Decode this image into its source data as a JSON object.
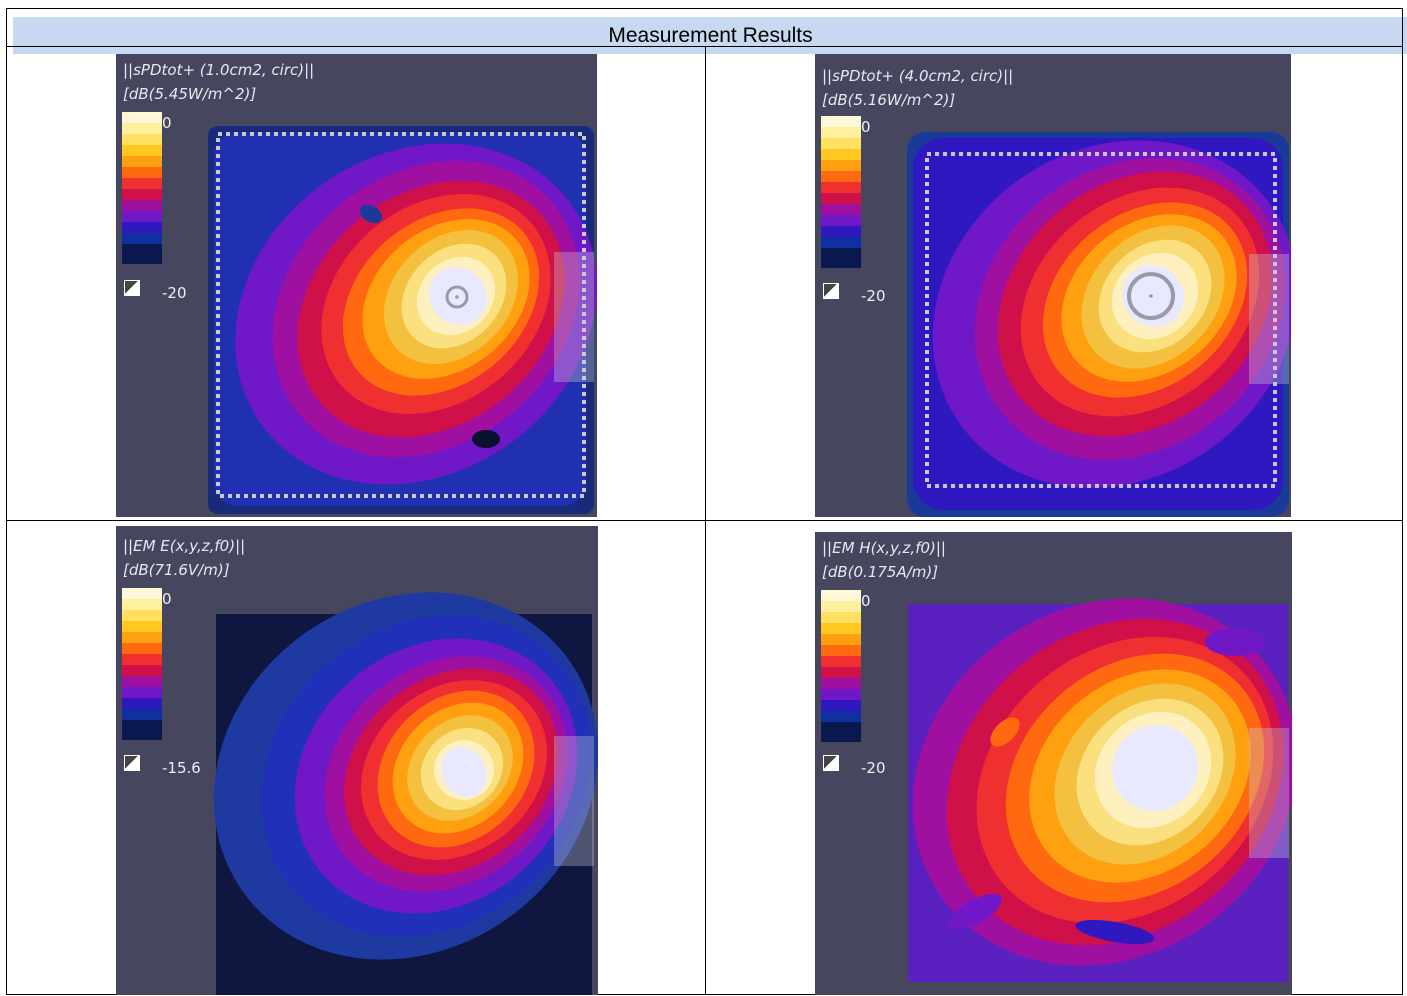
{
  "header": {
    "title": "Measurement Results"
  },
  "colorscale": [
    "#fff8d8",
    "#fff0a0",
    "#ffe060",
    "#ffc820",
    "#ffa010",
    "#ff6a10",
    "#f03030",
    "#d01048",
    "#a010a0",
    "#7018c8",
    "#3018c0",
    "#1030a0",
    "#0a1850"
  ],
  "plots": [
    {
      "title1": "||sPDtot+ (1.0cm2, circ)||",
      "title2": "[dB(5.45W/m^2)]",
      "max": "0",
      "min": "-20"
    },
    {
      "title1": "||sPDtot+ (4.0cm2, circ)||",
      "title2": "[dB(5.16W/m^2)]",
      "max": "0",
      "min": "-20"
    },
    {
      "title1": "||EM E(x,y,z,f0)||",
      "title2": "[dB(71.6V/m)]",
      "max": "0",
      "min": "-15.6"
    },
    {
      "title1": "||EM H(x,y,z,f0)||",
      "title2": "[dB(0.175A/m)]",
      "max": "0",
      "min": "-20"
    }
  ]
}
